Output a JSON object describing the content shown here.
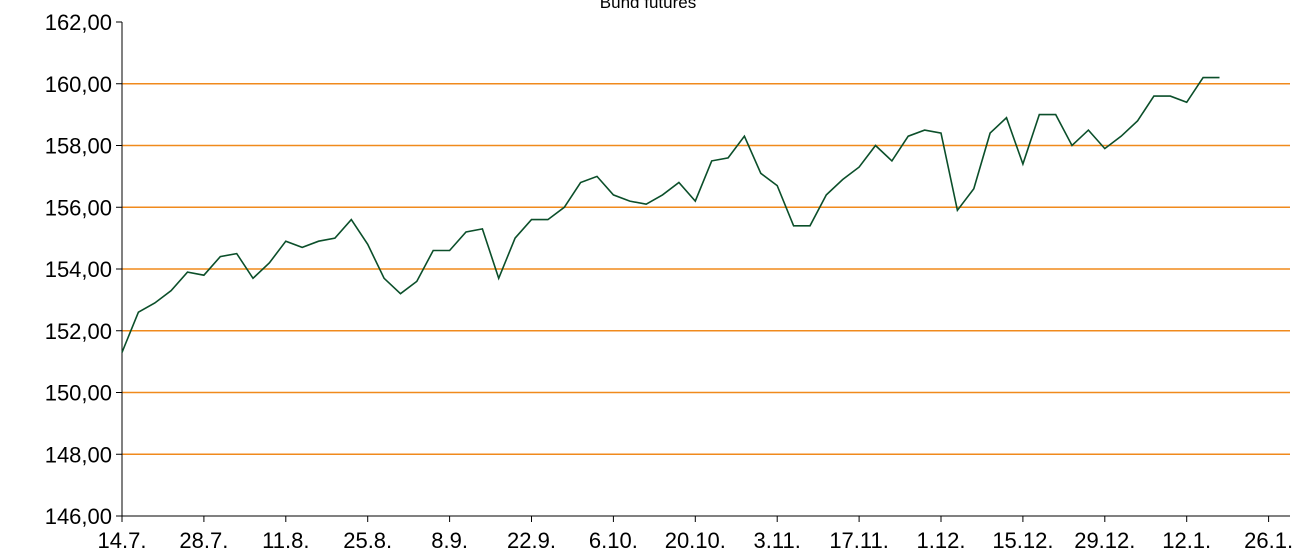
{
  "chart_data": {
    "type": "line",
    "title": "Bund futures",
    "categories": [
      "14.7.",
      null,
      null,
      null,
      null,
      "28.7.",
      null,
      null,
      null,
      null,
      "11.8.",
      null,
      null,
      null,
      null,
      "25.8.",
      null,
      null,
      null,
      null,
      "8.9.",
      null,
      null,
      null,
      null,
      "22.9.",
      null,
      null,
      null,
      null,
      "6.10.",
      null,
      null,
      null,
      null,
      "20.10.",
      null,
      null,
      null,
      null,
      "3.11.",
      null,
      null,
      null,
      null,
      "17.11.",
      null,
      null,
      null,
      null,
      "1.12.",
      null,
      null,
      null,
      null,
      "15.12.",
      null,
      null,
      null,
      null,
      "29.12.",
      null,
      null,
      null,
      null,
      "12.1.",
      null,
      null,
      null,
      null,
      "26.1."
    ],
    "series": [
      {
        "name": "Bund futures",
        "color": "#0b4f2a",
        "values": [
          151.3,
          152.6,
          152.9,
          153.3,
          153.9,
          153.8,
          154.4,
          154.5,
          153.7,
          154.2,
          154.9,
          154.7,
          154.9,
          155.0,
          155.6,
          154.8,
          153.7,
          153.2,
          153.6,
          154.6,
          154.6,
          155.2,
          155.3,
          153.7,
          155.0,
          155.6,
          155.6,
          156.0,
          156.8,
          157.0,
          156.4,
          156.2,
          156.1,
          156.4,
          156.8,
          156.2,
          157.5,
          157.6,
          158.3,
          157.1,
          156.7,
          155.4,
          155.4,
          156.4,
          156.9,
          157.3,
          158.0,
          157.5,
          158.3,
          158.5,
          158.4,
          155.9,
          156.6,
          158.4,
          158.9,
          157.4,
          159.0,
          159.0,
          158.0,
          158.5,
          157.9,
          158.3,
          158.8,
          159.6,
          159.6,
          159.4,
          160.2,
          160.2,
          null,
          null,
          null
        ]
      }
    ],
    "ylim": [
      146,
      162
    ],
    "yticks": [
      {
        "value": 146,
        "label": "146,00"
      },
      {
        "value": 148,
        "label": "148,00"
      },
      {
        "value": 150,
        "label": "150,00"
      },
      {
        "value": 152,
        "label": "152,00"
      },
      {
        "value": 154,
        "label": "154,00"
      },
      {
        "value": 156,
        "label": "156,00"
      },
      {
        "value": 158,
        "label": "158,00"
      },
      {
        "value": 160,
        "label": "160,00"
      },
      {
        "value": 162,
        "label": "162,00"
      }
    ],
    "grid": true,
    "grid_color": "#f08a1c"
  }
}
